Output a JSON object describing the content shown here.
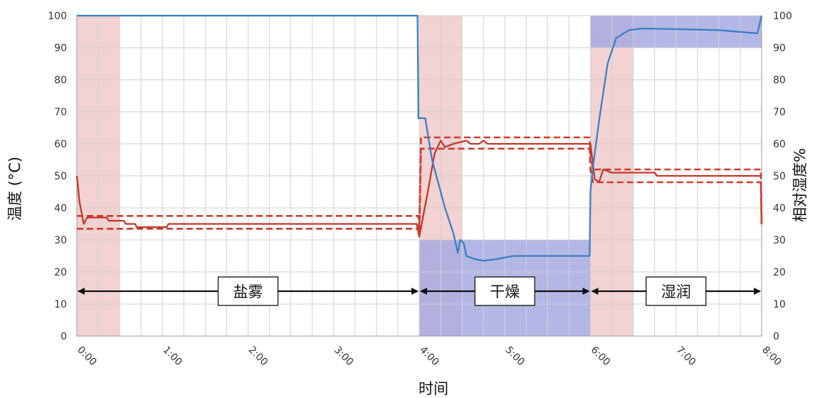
{
  "chart_data": {
    "type": "line",
    "xlabel": "时间",
    "ylabel": "温度 (°C)",
    "y2label": "相对湿度%",
    "xlim": [
      0,
      8
    ],
    "ylim": [
      0,
      100
    ],
    "y2lim": [
      0,
      100
    ],
    "xticks": [
      0,
      1,
      2,
      3,
      4,
      5,
      6,
      7,
      8
    ],
    "xtick_labels": [
      "0:00",
      "1:00",
      "2:00",
      "3:00",
      "4:00",
      "5:00",
      "6:00",
      "7:00",
      "8:00"
    ],
    "yticks": [
      0,
      10,
      20,
      30,
      40,
      50,
      60,
      70,
      80,
      90,
      100
    ],
    "ytick_labels": [
      "0",
      "10",
      "20",
      "30",
      "40",
      "50",
      "60",
      "70",
      "80",
      "90",
      "100"
    ],
    "y2ticks": [
      0,
      10,
      20,
      30,
      40,
      50,
      60,
      70,
      80,
      90,
      100
    ],
    "y2tick_labels": [
      "0",
      "10",
      "20",
      "30",
      "40",
      "50",
      "60",
      "70",
      "80",
      "90",
      "100"
    ],
    "grid": true,
    "temp_bands": [
      {
        "x": [
          0,
          0.5
        ]
      },
      {
        "x": [
          4,
          4.5
        ]
      },
      {
        "x": [
          6,
          6.5
        ]
      }
    ],
    "humidity_bands": [
      {
        "x": [
          4,
          6
        ],
        "y": [
          0,
          30
        ]
      },
      {
        "x": [
          6,
          8
        ],
        "y": [
          90,
          100
        ]
      }
    ],
    "phases": [
      {
        "label": "盐雾",
        "x": [
          0,
          4
        ]
      },
      {
        "label": "干燥",
        "x": [
          4,
          6
        ]
      },
      {
        "label": "湿润",
        "x": [
          6,
          8
        ]
      }
    ],
    "series": [
      {
        "color": "#c0392b",
        "axis": "left",
        "style": "solid",
        "points": [
          [
            0,
            50
          ],
          [
            0.03,
            42
          ],
          [
            0.08,
            35
          ],
          [
            0.12,
            37
          ],
          [
            0.35,
            37
          ],
          [
            0.37,
            36
          ],
          [
            0.55,
            36
          ],
          [
            0.57,
            35
          ],
          [
            0.68,
            35
          ],
          [
            0.7,
            34
          ],
          [
            1.05,
            34
          ],
          [
            1.07,
            35
          ],
          [
            3.97,
            35
          ],
          [
            4.0,
            31
          ],
          [
            4.1,
            45
          ],
          [
            4.18,
            57
          ],
          [
            4.25,
            61
          ],
          [
            4.3,
            59
          ],
          [
            4.4,
            60
          ],
          [
            4.55,
            61
          ],
          [
            4.6,
            60
          ],
          [
            4.7,
            60
          ],
          [
            4.75,
            61
          ],
          [
            4.8,
            60
          ],
          [
            6.0,
            60
          ],
          [
            6.05,
            49
          ],
          [
            6.1,
            48
          ],
          [
            6.15,
            52
          ],
          [
            6.25,
            51
          ],
          [
            6.75,
            51
          ],
          [
            6.78,
            50
          ],
          [
            8,
            50
          ]
        ]
      },
      {
        "color": "#d03a2a",
        "axis": "left",
        "style": "dashed",
        "points": [
          [
            0,
            37.5
          ],
          [
            3.99,
            37.5
          ],
          [
            4.0,
            32
          ],
          [
            4.02,
            62
          ],
          [
            5.99,
            62
          ],
          [
            6.0,
            57
          ],
          [
            6.03,
            52
          ],
          [
            7.99,
            52
          ],
          [
            8.0,
            35
          ]
        ]
      },
      {
        "color": "#d03a2a",
        "axis": "left",
        "style": "dashed",
        "points": [
          [
            0,
            33.5
          ],
          [
            3.99,
            33.5
          ],
          [
            4.0,
            32
          ],
          [
            4.02,
            58.5
          ],
          [
            5.99,
            58.5
          ],
          [
            6.0,
            52
          ],
          [
            6.03,
            48
          ],
          [
            7.99,
            48
          ],
          [
            8.0,
            34
          ]
        ]
      },
      {
        "color": "#3a7fc6",
        "axis": "right",
        "style": "solid",
        "points": [
          [
            0,
            100
          ],
          [
            3.98,
            100
          ],
          [
            3.99,
            68
          ],
          [
            4.07,
            68
          ],
          [
            4.15,
            55
          ],
          [
            4.3,
            40
          ],
          [
            4.4,
            32
          ],
          [
            4.45,
            26
          ],
          [
            4.48,
            30
          ],
          [
            4.52,
            29
          ],
          [
            4.55,
            25
          ],
          [
            4.65,
            24
          ],
          [
            4.75,
            23.5
          ],
          [
            4.9,
            24
          ],
          [
            5.1,
            25
          ],
          [
            5.99,
            25
          ],
          [
            6.0,
            45
          ],
          [
            6.03,
            53
          ],
          [
            6.1,
            67
          ],
          [
            6.2,
            85
          ],
          [
            6.3,
            93
          ],
          [
            6.45,
            95.5
          ],
          [
            6.6,
            96
          ],
          [
            7.0,
            95.8
          ],
          [
            7.5,
            95.5
          ],
          [
            7.95,
            94.5
          ],
          [
            8,
            100
          ]
        ]
      }
    ]
  }
}
